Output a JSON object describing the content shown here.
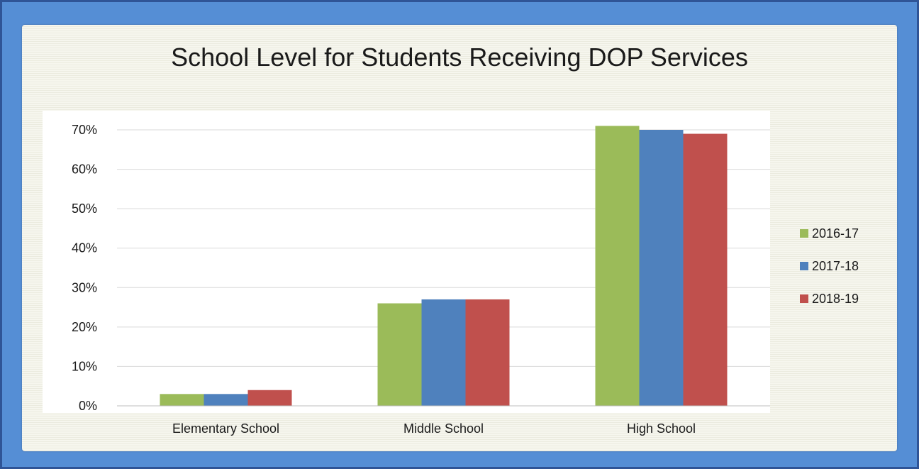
{
  "chart_data": {
    "type": "bar",
    "title": "School Level for Students Receiving DOP Services",
    "categories": [
      "Elementary School",
      "Middle School",
      "High School"
    ],
    "series": [
      {
        "name": "2016-17",
        "color": "#9bbb59",
        "values": [
          3,
          26,
          71
        ]
      },
      {
        "name": "2017-18",
        "color": "#4f81bd",
        "values": [
          3,
          27,
          70
        ]
      },
      {
        "name": "2018-19",
        "color": "#c0504d",
        "values": [
          4,
          27,
          69
        ]
      }
    ],
    "yticks": [
      "0%",
      "10%",
      "20%",
      "30%",
      "40%",
      "50%",
      "60%",
      "70%"
    ],
    "ylim": [
      0,
      70
    ],
    "y_unit": "%",
    "grid": true,
    "legend_position": "right"
  }
}
